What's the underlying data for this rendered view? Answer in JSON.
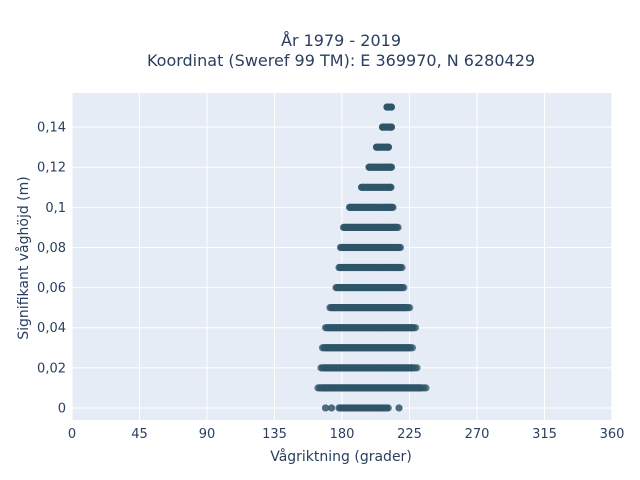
{
  "chart_data": {
    "type": "scatter",
    "title_lines": [
      "År 1979 - 2019",
      "Koordinat (Sweref 99 TM): E 369970, N 6280429"
    ],
    "xlabel": "Vågriktning (grader)",
    "ylabel": "Signifikant våghöjd (m)",
    "xlim": [
      0,
      360
    ],
    "ylim": [
      -0.006,
      0.157
    ],
    "x_ticks": [
      0,
      45,
      90,
      135,
      180,
      225,
      270,
      315,
      360
    ],
    "y_ticks": [
      0,
      0.02,
      0.04,
      0.06,
      0.08,
      0.1,
      0.12,
      0.14
    ],
    "y_tick_labels": [
      "0",
      "0,02",
      "0,04",
      "0,06",
      "0,08",
      "0,1",
      "0,12",
      "0,14"
    ],
    "grid": true,
    "marker_color": "#2f5468",
    "plot_background": "#e5ecf6",
    "bands": [
      {
        "y": 0.0,
        "x_min": 169,
        "x_max": 218,
        "sparse": true
      },
      {
        "y": 0.01,
        "x_min": 164,
        "x_max": 236
      },
      {
        "y": 0.02,
        "x_min": 166,
        "x_max": 230
      },
      {
        "y": 0.03,
        "x_min": 167,
        "x_max": 228
      },
      {
        "y": 0.04,
        "x_min": 169,
        "x_max": 230
      },
      {
        "y": 0.05,
        "x_min": 172,
        "x_max": 226
      },
      {
        "y": 0.06,
        "x_min": 176,
        "x_max": 222
      },
      {
        "y": 0.07,
        "x_min": 178,
        "x_max": 220
      },
      {
        "y": 0.08,
        "x_min": 179,
        "x_max": 219
      },
      {
        "y": 0.09,
        "x_min": 181,
        "x_max": 218
      },
      {
        "y": 0.1,
        "x_min": 185,
        "x_max": 214
      },
      {
        "y": 0.11,
        "x_min": 193,
        "x_max": 213
      },
      {
        "y": 0.12,
        "x_min": 198,
        "x_max": 213
      },
      {
        "y": 0.13,
        "x_min": 203,
        "x_max": 211
      },
      {
        "y": 0.14,
        "x_min": 207,
        "x_max": 213
      },
      {
        "y": 0.15,
        "x_min": 210,
        "x_max": 213
      }
    ]
  }
}
